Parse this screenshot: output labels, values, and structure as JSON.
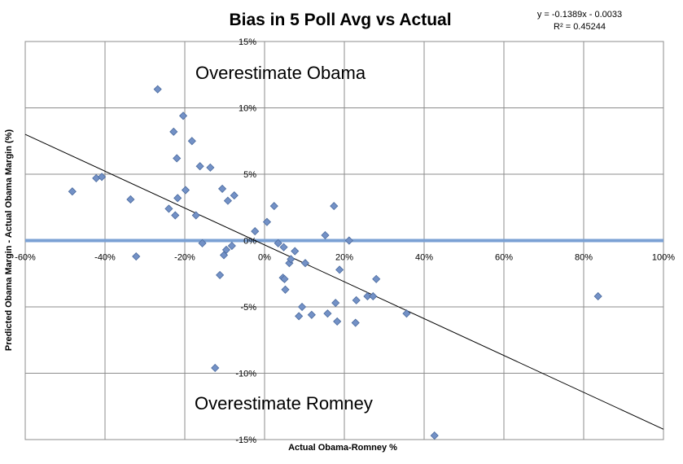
{
  "chart_data": {
    "type": "scatter",
    "title": "Bias in 5 Poll Avg vs Actual",
    "xlabel": "Actual Obama-Romney %",
    "ylabel": "Predicted Obama Margin - Actual Obama Margin (%)",
    "xlim": [
      -60,
      100
    ],
    "ylim": [
      -15,
      15
    ],
    "x_ticks": [
      "-60%",
      "-40%",
      "-20%",
      "0%",
      "20%",
      "40%",
      "60%",
      "80%",
      "100%"
    ],
    "y_ticks": [
      "15%",
      "10%",
      "5%",
      "0%",
      "-5%",
      "-10%",
      "-15%"
    ],
    "grid": true,
    "marker_color": "#7391c6",
    "marker_edge_color": "#4a6a9e",
    "zero_line_color": "#7ba1d4",
    "trendline": {
      "equation": "y = -0.1389x - 0.0033",
      "r_squared": "R² = 0.45244",
      "slope": -0.1389,
      "intercept_pct": -0.33
    },
    "annotations": [
      "Overestimate Obama",
      "Overestimate Romney"
    ],
    "points": [
      {
        "x": -48.2,
        "y": 3.7
      },
      {
        "x": -42.2,
        "y": 4.7
      },
      {
        "x": -40.8,
        "y": 4.8
      },
      {
        "x": -33.6,
        "y": 3.1
      },
      {
        "x": -32.2,
        "y": -1.2
      },
      {
        "x": -26.8,
        "y": 11.4
      },
      {
        "x": -24.0,
        "y": 2.4
      },
      {
        "x": -22.8,
        "y": 8.2
      },
      {
        "x": -22.4,
        "y": 1.9
      },
      {
        "x": -22.0,
        "y": 6.2
      },
      {
        "x": -21.8,
        "y": 3.2
      },
      {
        "x": -20.4,
        "y": 9.4
      },
      {
        "x": -19.8,
        "y": 3.8
      },
      {
        "x": -18.2,
        "y": 7.5
      },
      {
        "x": -17.2,
        "y": 1.9
      },
      {
        "x": -16.2,
        "y": 5.6
      },
      {
        "x": -15.6,
        "y": -0.2
      },
      {
        "x": -13.6,
        "y": 5.5
      },
      {
        "x": -12.4,
        "y": -9.6
      },
      {
        "x": -11.2,
        "y": -2.6
      },
      {
        "x": -10.6,
        "y": 3.9
      },
      {
        "x": -10.2,
        "y": -1.1
      },
      {
        "x": -9.6,
        "y": -0.7
      },
      {
        "x": -9.2,
        "y": 3.0
      },
      {
        "x": -8.2,
        "y": -0.4
      },
      {
        "x": -7.6,
        "y": 3.4
      },
      {
        "x": -2.4,
        "y": 0.7
      },
      {
        "x": 0.6,
        "y": 1.4
      },
      {
        "x": 2.4,
        "y": 2.6
      },
      {
        "x": 3.4,
        "y": -0.2
      },
      {
        "x": 4.6,
        "y": -2.8
      },
      {
        "x": 4.8,
        "y": -0.5
      },
      {
        "x": 5.0,
        "y": -2.9
      },
      {
        "x": 5.2,
        "y": -3.7
      },
      {
        "x": 6.2,
        "y": -1.7
      },
      {
        "x": 6.6,
        "y": -1.4
      },
      {
        "x": 7.6,
        "y": -0.8
      },
      {
        "x": 8.6,
        "y": -5.7
      },
      {
        "x": 9.4,
        "y": -5.0
      },
      {
        "x": 10.2,
        "y": -1.7
      },
      {
        "x": 11.8,
        "y": -5.6
      },
      {
        "x": 15.2,
        "y": 0.4
      },
      {
        "x": 15.8,
        "y": -5.5
      },
      {
        "x": 17.4,
        "y": 2.6
      },
      {
        "x": 17.8,
        "y": -4.7
      },
      {
        "x": 18.2,
        "y": -6.1
      },
      {
        "x": 18.8,
        "y": -2.2
      },
      {
        "x": 21.2,
        "y": 0.0
      },
      {
        "x": 22.8,
        "y": -6.2
      },
      {
        "x": 23.0,
        "y": -4.5
      },
      {
        "x": 25.8,
        "y": -4.2
      },
      {
        "x": 27.2,
        "y": -4.2
      },
      {
        "x": 28.0,
        "y": -2.9
      },
      {
        "x": 35.6,
        "y": -5.5
      },
      {
        "x": 42.6,
        "y": -14.7
      },
      {
        "x": 83.6,
        "y": -4.2
      }
    ]
  }
}
